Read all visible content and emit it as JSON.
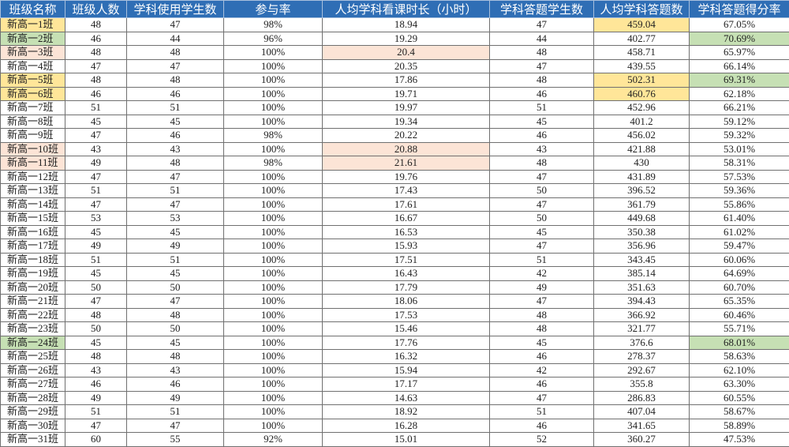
{
  "colors": {
    "header": "#2f6eb5",
    "yellow": "#ffe699",
    "green": "#c6e0b4",
    "peach": "#fce4d6"
  },
  "columns": [
    "班级名称",
    "班级人数",
    "学科使用学生数",
    "参与率",
    "人均学科看课时长（小时）",
    "学科答题学生数",
    "人均学科答题数",
    "学科答题得分率"
  ],
  "rows": [
    {
      "cells": [
        "新高一1班",
        "48",
        "47",
        "98%",
        "18.94",
        "47",
        "459.04",
        "67.05%"
      ],
      "highlight": {
        "0": "yellow",
        "6": "yellow"
      }
    },
    {
      "cells": [
        "新高一2班",
        "46",
        "44",
        "96%",
        "19.29",
        "44",
        "402.77",
        "70.69%"
      ],
      "highlight": {
        "0": "green",
        "7": "green"
      }
    },
    {
      "cells": [
        "新高一3班",
        "48",
        "48",
        "100%",
        "20.4",
        "48",
        "458.71",
        "65.97%"
      ],
      "highlight": {
        "0": "peach",
        "4": "peach"
      }
    },
    {
      "cells": [
        "新高一4班",
        "47",
        "47",
        "100%",
        "20.35",
        "47",
        "439.55",
        "66.14%"
      ],
      "highlight": {}
    },
    {
      "cells": [
        "新高一5班",
        "48",
        "48",
        "100%",
        "17.86",
        "48",
        "502.31",
        "69.31%"
      ],
      "highlight": {
        "0": "yellow",
        "6": "yellow",
        "7": "green"
      }
    },
    {
      "cells": [
        "新高一6班",
        "46",
        "46",
        "100%",
        "19.71",
        "46",
        "460.76",
        "62.18%"
      ],
      "highlight": {
        "0": "yellow",
        "6": "yellow"
      }
    },
    {
      "cells": [
        "新高一7班",
        "51",
        "51",
        "100%",
        "19.97",
        "51",
        "452.96",
        "66.21%"
      ],
      "highlight": {}
    },
    {
      "cells": [
        "新高一8班",
        "45",
        "45",
        "100%",
        "19.34",
        "45",
        "401.2",
        "59.12%"
      ],
      "highlight": {}
    },
    {
      "cells": [
        "新高一9班",
        "47",
        "46",
        "98%",
        "20.22",
        "46",
        "456.02",
        "59.32%"
      ],
      "highlight": {}
    },
    {
      "cells": [
        "新高一10班",
        "43",
        "43",
        "100%",
        "20.88",
        "43",
        "421.88",
        "53.01%"
      ],
      "highlight": {
        "0": "peach",
        "4": "peach"
      }
    },
    {
      "cells": [
        "新高一11班",
        "49",
        "48",
        "98%",
        "21.61",
        "48",
        "430",
        "58.31%"
      ],
      "highlight": {
        "0": "peach",
        "4": "peach"
      }
    },
    {
      "cells": [
        "新高一12班",
        "47",
        "47",
        "100%",
        "19.76",
        "47",
        "431.89",
        "57.53%"
      ],
      "highlight": {}
    },
    {
      "cells": [
        "新高一13班",
        "51",
        "51",
        "100%",
        "17.43",
        "50",
        "396.52",
        "59.36%"
      ],
      "highlight": {}
    },
    {
      "cells": [
        "新高一14班",
        "47",
        "47",
        "100%",
        "17.61",
        "47",
        "361.79",
        "55.86%"
      ],
      "highlight": {}
    },
    {
      "cells": [
        "新高一15班",
        "53",
        "53",
        "100%",
        "16.67",
        "50",
        "449.68",
        "61.40%"
      ],
      "highlight": {}
    },
    {
      "cells": [
        "新高一16班",
        "45",
        "45",
        "100%",
        "16.53",
        "45",
        "350.38",
        "61.02%"
      ],
      "highlight": {}
    },
    {
      "cells": [
        "新高一17班",
        "49",
        "49",
        "100%",
        "15.93",
        "47",
        "356.96",
        "59.47%"
      ],
      "highlight": {}
    },
    {
      "cells": [
        "新高一18班",
        "51",
        "51",
        "100%",
        "17.51",
        "51",
        "343.45",
        "60.06%"
      ],
      "highlight": {}
    },
    {
      "cells": [
        "新高一19班",
        "45",
        "45",
        "100%",
        "16.43",
        "42",
        "385.14",
        "64.69%"
      ],
      "highlight": {}
    },
    {
      "cells": [
        "新高一20班",
        "50",
        "50",
        "100%",
        "17.79",
        "49",
        "351.63",
        "60.70%"
      ],
      "highlight": {}
    },
    {
      "cells": [
        "新高一21班",
        "47",
        "47",
        "100%",
        "18.06",
        "47",
        "394.43",
        "65.35%"
      ],
      "highlight": {}
    },
    {
      "cells": [
        "新高一22班",
        "48",
        "48",
        "100%",
        "17.53",
        "48",
        "366.92",
        "60.46%"
      ],
      "highlight": {}
    },
    {
      "cells": [
        "新高一23班",
        "50",
        "50",
        "100%",
        "15.46",
        "48",
        "321.77",
        "55.71%"
      ],
      "highlight": {}
    },
    {
      "cells": [
        "新高一24班",
        "45",
        "45",
        "100%",
        "17.76",
        "45",
        "376.6",
        "68.01%"
      ],
      "highlight": {
        "0": "green",
        "7": "green"
      }
    },
    {
      "cells": [
        "新高一25班",
        "48",
        "48",
        "100%",
        "16.32",
        "46",
        "278.37",
        "58.63%"
      ],
      "highlight": {}
    },
    {
      "cells": [
        "新高一26班",
        "43",
        "43",
        "100%",
        "15.94",
        "42",
        "292.67",
        "62.10%"
      ],
      "highlight": {}
    },
    {
      "cells": [
        "新高一27班",
        "46",
        "46",
        "100%",
        "17.17",
        "46",
        "355.8",
        "63.30%"
      ],
      "highlight": {}
    },
    {
      "cells": [
        "新高一28班",
        "49",
        "49",
        "100%",
        "14.63",
        "47",
        "286.83",
        "60.55%"
      ],
      "highlight": {}
    },
    {
      "cells": [
        "新高一29班",
        "51",
        "51",
        "100%",
        "18.92",
        "51",
        "407.04",
        "58.67%"
      ],
      "highlight": {}
    },
    {
      "cells": [
        "新高一30班",
        "47",
        "47",
        "100%",
        "16.28",
        "46",
        "341.65",
        "58.89%"
      ],
      "highlight": {}
    },
    {
      "cells": [
        "新高一31班",
        "60",
        "55",
        "92%",
        "15.01",
        "52",
        "360.27",
        "47.53%"
      ],
      "highlight": {}
    }
  ]
}
